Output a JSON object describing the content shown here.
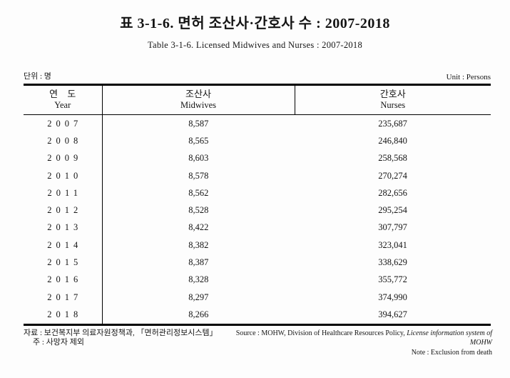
{
  "page": {
    "title_ko": "표 3-1-6. 면허 조산사·간호사 수 : 2007-2018",
    "title_en": "Table 3-1-6. Licensed Midwives and Nurses : 2007-2018",
    "unit_ko": "단위 : 명",
    "unit_en": "Unit : Persons"
  },
  "table": {
    "columns": [
      {
        "ko": "연 도",
        "en": "Year"
      },
      {
        "ko": "조산사",
        "en": "Midwives"
      },
      {
        "ko": "간호사",
        "en": "Nurses"
      }
    ],
    "rows": [
      {
        "year": "2007",
        "midwives": "8,587",
        "nurses": "235,687"
      },
      {
        "year": "2008",
        "midwives": "8,565",
        "nurses": "246,840"
      },
      {
        "year": "2009",
        "midwives": "8,603",
        "nurses": "258,568"
      },
      {
        "year": "2010",
        "midwives": "8,578",
        "nurses": "270,274"
      },
      {
        "year": "2011",
        "midwives": "8,562",
        "nurses": "282,656"
      },
      {
        "year": "2012",
        "midwives": "8,528",
        "nurses": "295,254"
      },
      {
        "year": "2013",
        "midwives": "8,422",
        "nurses": "307,797"
      },
      {
        "year": "2014",
        "midwives": "8,382",
        "nurses": "323,041"
      },
      {
        "year": "2015",
        "midwives": "8,387",
        "nurses": "338,629"
      },
      {
        "year": "2016",
        "midwives": "8,328",
        "nurses": "355,772"
      },
      {
        "year": "2017",
        "midwives": "8,297",
        "nurses": "374,990"
      },
      {
        "year": "2018",
        "midwives": "8,266",
        "nurses": "394,627"
      }
    ]
  },
  "footer": {
    "source_ko": "자료 : 보건복지부 의료자원정책과, 「면허관리정보시스템」",
    "note_ko": "주 : 사망자 제외",
    "source_en_prefix": "Source : MOHW, Division of Healthcare Resources Policy, ",
    "source_en_italic": "License information system of MOHW",
    "note_en": "Note : Exclusion from death"
  }
}
